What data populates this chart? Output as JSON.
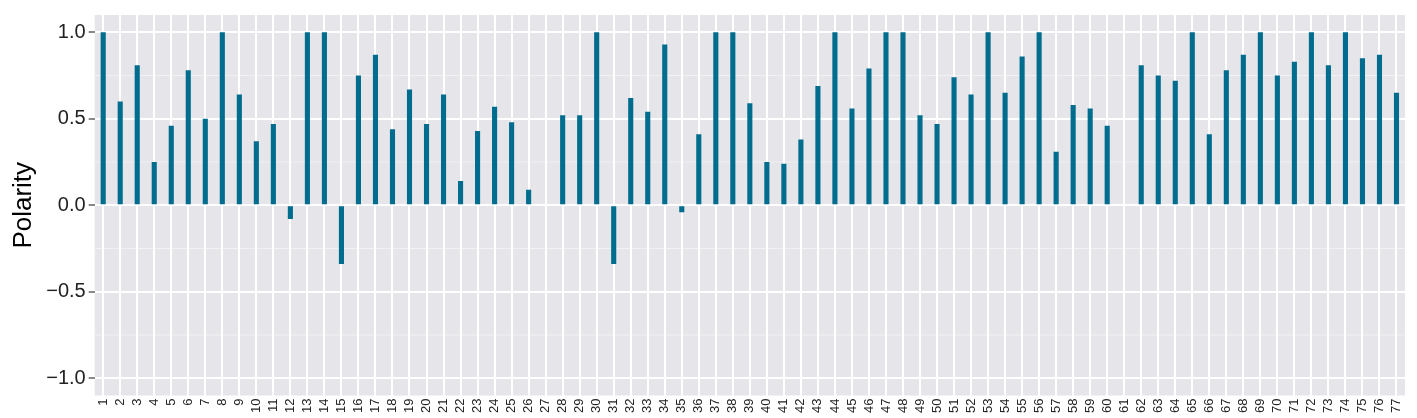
{
  "chart_data": {
    "type": "bar",
    "ylabel": "Polarity",
    "categories": [
      "1",
      "2",
      "3",
      "4",
      "5",
      "6",
      "7",
      "8",
      "9",
      "10",
      "11",
      "12",
      "13",
      "14",
      "15",
      "16",
      "17",
      "18",
      "19",
      "20",
      "21",
      "22",
      "23",
      "24",
      "25",
      "26",
      "27",
      "28",
      "29",
      "30",
      "31",
      "32",
      "33",
      "34",
      "35",
      "36",
      "37",
      "38",
      "39",
      "40",
      "41",
      "42",
      "43",
      "44",
      "45",
      "46",
      "47",
      "48",
      "49",
      "50",
      "51",
      "52",
      "53",
      "54",
      "55",
      "56",
      "57",
      "58",
      "59",
      "60",
      "61",
      "62",
      "63",
      "64",
      "65",
      "66",
      "67",
      "68",
      "69",
      "70",
      "71",
      "72",
      "73",
      "74",
      "75",
      "76",
      "77"
    ],
    "values": [
      1.0,
      0.6,
      0.81,
      0.25,
      0.46,
      0.78,
      0.5,
      1.0,
      0.64,
      0.37,
      0.47,
      -0.08,
      1.0,
      1.0,
      -0.34,
      0.75,
      0.87,
      0.44,
      0.67,
      0.47,
      0.64,
      0.14,
      0.43,
      0.57,
      0.48,
      0.09,
      0.0,
      0.52,
      0.52,
      1.0,
      -0.34,
      0.62,
      0.54,
      0.93,
      -0.04,
      0.41,
      1.0,
      1.0,
      0.59,
      0.25,
      0.24,
      0.38,
      0.69,
      1.0,
      0.56,
      0.79,
      1.0,
      1.0,
      0.52,
      0.47,
      0.74,
      0.64,
      1.0,
      0.65,
      0.86,
      1.0,
      0.31,
      0.58,
      0.56,
      0.46,
      0.0,
      0.81,
      0.75,
      0.72,
      1.0,
      0.41,
      0.78,
      0.87,
      1.0,
      0.75,
      0.83,
      1.0,
      0.81,
      1.0,
      0.85,
      0.87,
      0.65
    ],
    "color": "#006d8f",
    "ylim": [
      -1.1,
      1.1
    ],
    "yticks": [
      {
        "value": -1,
        "label": "−1.0"
      },
      {
        "value": -0.5,
        "label": "−0.5"
      },
      {
        "value": 0,
        "label": "0.0"
      },
      {
        "value": 0.5,
        "label": "0.5"
      },
      {
        "value": 1,
        "label": "1.0"
      }
    ],
    "grid": true
  }
}
